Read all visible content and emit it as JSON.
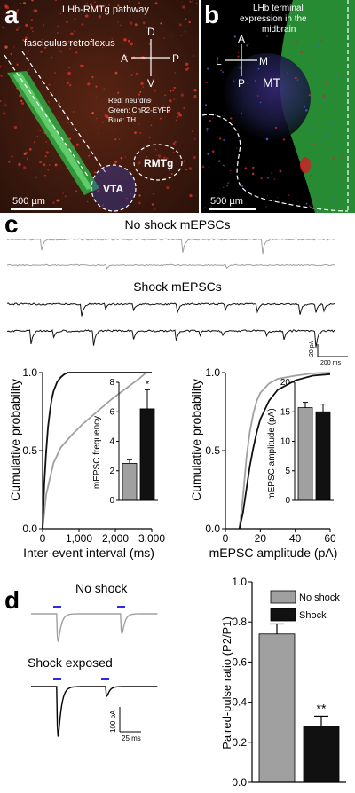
{
  "panels": {
    "a": {
      "letter": "a",
      "title": "LHb-RMTg pathway",
      "tract_label": "fasciculus retroflexus",
      "compass": {
        "d": "D",
        "v": "V",
        "a": "A",
        "p": "P"
      },
      "legend": [
        "Red: neurdns",
        "Green: ChR2-EYFP",
        "Blue: TH"
      ],
      "regions": {
        "vta": "VTA",
        "rmtg": "RMTg"
      },
      "scale": "500 µm",
      "colors": {
        "bg": "#3a1a10",
        "green": "#2fbf4a",
        "red": "#d0302a",
        "blue": "#3a45c8"
      }
    },
    "b": {
      "letter": "b",
      "title_lines": [
        "LHb terminal",
        "expression in the",
        "midbrain"
      ],
      "compass": {
        "a": "A",
        "p": "P",
        "l": "L",
        "m": "M"
      },
      "region": "MT",
      "scale": "500 µm"
    },
    "c": {
      "letter": "c",
      "no_shock_title": "No shock mEPSCs",
      "shock_title": "Shock mEPSCs",
      "scalebar_y": "20 pA",
      "scalebar_x": "200 ms",
      "colors": {
        "noshock": "#a0a0a0",
        "shock": "#111111"
      }
    },
    "d": {
      "letter": "d",
      "no_shock_title": "No shock",
      "shock_title": "Shock exposed",
      "scalebar_y": "100 pA",
      "scalebar_x": "25 ms"
    }
  },
  "chart_data": [
    {
      "type": "line",
      "id": "interval-cdf",
      "xlabel": "Inter-event interval (ms)",
      "ylabel": "Cumulative probability",
      "xticks": [
        "0",
        "1,000",
        "2,000",
        "3,000"
      ],
      "yticks": [
        "0.0",
        "0.5",
        "1.0"
      ],
      "xlim": [
        0,
        3000
      ],
      "ylim": [
        0,
        1
      ],
      "series": [
        {
          "color": "#a0a0a0",
          "x": [
            0,
            100,
            300,
            500,
            800,
            1100,
            1500,
            1900,
            2300,
            2650,
            2850
          ],
          "y": [
            0,
            0.22,
            0.42,
            0.52,
            0.6,
            0.67,
            0.75,
            0.83,
            0.9,
            0.96,
            1.0
          ]
        },
        {
          "color": "#111111",
          "x": [
            0,
            50,
            100,
            150,
            200,
            250,
            300,
            400,
            500,
            600,
            700,
            3000
          ],
          "y": [
            0,
            0.3,
            0.5,
            0.65,
            0.75,
            0.83,
            0.88,
            0.94,
            0.97,
            0.99,
            1.0,
            1.0
          ]
        }
      ],
      "inset": {
        "type": "bar",
        "ylabel": "mEPSC frequency",
        "yticks": [
          "0",
          "2",
          "4",
          "6",
          "8"
        ],
        "ylim": [
          0,
          8
        ],
        "values": [
          2.5,
          6.2
        ],
        "errors": [
          0.25,
          1.3
        ],
        "colors": [
          "#a0a0a0",
          "#111111"
        ],
        "annotation": "*"
      }
    },
    {
      "type": "line",
      "id": "amplitude-cdf",
      "xlabel": "mEPSC amplitude (pA)",
      "ylabel": "Cumulative probability",
      "xticks": [
        "0",
        "20",
        "40",
        "60"
      ],
      "yticks": [
        "0.0",
        "0.5",
        "1.0"
      ],
      "xlim": [
        0,
        60
      ],
      "ylim": [
        0,
        1
      ],
      "series": [
        {
          "color": "#a0a0a0",
          "x": [
            8,
            10,
            12,
            14,
            16,
            18,
            20,
            25,
            30,
            40,
            50,
            60
          ],
          "y": [
            0,
            0.2,
            0.45,
            0.62,
            0.74,
            0.82,
            0.87,
            0.93,
            0.96,
            0.98,
            0.995,
            1.0
          ]
        },
        {
          "color": "#111111",
          "x": [
            8,
            10,
            12,
            14,
            16,
            18,
            20,
            25,
            30,
            40,
            50,
            60
          ],
          "y": [
            0,
            0.1,
            0.25,
            0.4,
            0.52,
            0.62,
            0.7,
            0.82,
            0.89,
            0.95,
            0.98,
            0.99
          ]
        }
      ],
      "inset": {
        "type": "bar",
        "ylabel": "mEPSC amplitude (pA)",
        "yticks": [
          "0",
          "5",
          "10",
          "15",
          "20"
        ],
        "ylim": [
          0,
          20
        ],
        "values": [
          15.7,
          15.0
        ],
        "errors": [
          0.9,
          1.3
        ],
        "colors": [
          "#a0a0a0",
          "#111111"
        ]
      }
    },
    {
      "type": "bar",
      "id": "ppr-bar",
      "ylabel": "Paired-pulse ratio (P2/P1)",
      "yticks": [
        "0.0",
        "0.2",
        "0.4",
        "0.6",
        "0.8",
        "1.0"
      ],
      "ylim": [
        0,
        1
      ],
      "categories": [
        "No shock",
        "Shock"
      ],
      "values": [
        0.74,
        0.28
      ],
      "errors": [
        0.05,
        0.05
      ],
      "colors": [
        "#a0a0a0",
        "#111111"
      ],
      "legend": [
        {
          "label": "No shock",
          "color": "#a0a0a0"
        },
        {
          "label": "Shock",
          "color": "#111111"
        }
      ],
      "legend_position": "top-right",
      "annotation": "**"
    }
  ]
}
